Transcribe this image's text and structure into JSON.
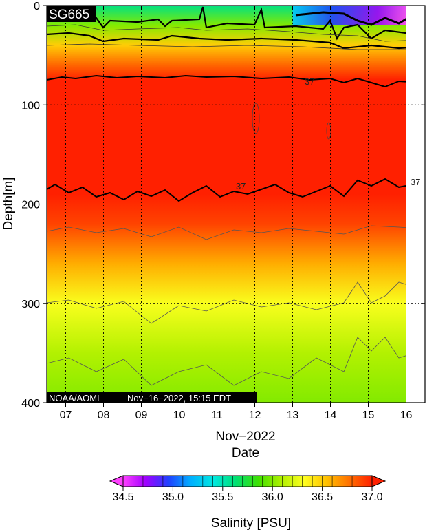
{
  "chart_data": {
    "type": "heatmap",
    "title": "SG665",
    "footer_left": "NOAA/AOML",
    "footer_timestamp": "Nov−16−2022, 15:15 EDT",
    "xlabel_month": "Nov−2022",
    "xlabel": "Date",
    "ylabel": "Depth[m]",
    "x_ticks": [
      "07",
      "08",
      "09",
      "10",
      "11",
      "12",
      "13",
      "14",
      "15",
      "16"
    ],
    "y_ticks": [
      "0",
      "100",
      "200",
      "300",
      "400"
    ],
    "ylim": [
      400,
      0
    ],
    "xlim_days": [
      6.5,
      16.5
    ],
    "colorbar": {
      "label": "Salinity [PSU]",
      "min": 34.5,
      "max": 37.0,
      "ticks": [
        "34.5",
        "35.0",
        "35.5",
        "36.0",
        "36.5",
        "37.0"
      ],
      "stops": [
        "#ff40ff",
        "#a000ff",
        "#2040ff",
        "#00b0ff",
        "#00e8e0",
        "#00e070",
        "#40e000",
        "#b0f000",
        "#ffff20",
        "#ffc000",
        "#ff7000",
        "#ff2000"
      ]
    },
    "depth_profile": [
      {
        "depth": 0,
        "salinity": 35.6
      },
      {
        "depth": 20,
        "salinity": 36.0
      },
      {
        "depth": 40,
        "salinity": 36.5
      },
      {
        "depth": 60,
        "salinity": 36.8
      },
      {
        "depth": 75,
        "salinity": 37.0
      },
      {
        "depth": 190,
        "salinity": 37.0
      },
      {
        "depth": 220,
        "salinity": 36.9
      },
      {
        "depth": 260,
        "salinity": 36.6
      },
      {
        "depth": 300,
        "salinity": 36.3
      },
      {
        "depth": 350,
        "salinity": 36.1
      },
      {
        "depth": 400,
        "salinity": 36.0
      }
    ],
    "contour_label_values": [
      "37",
      "37",
      "37"
    ],
    "data_end_day": 16.0,
    "low_salinity_patch": {
      "start_day": 13.0,
      "end_day": 16.0,
      "min_salinity": 34.6
    }
  }
}
